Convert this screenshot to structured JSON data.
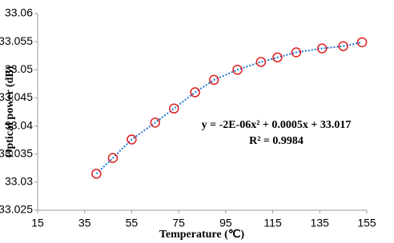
{
  "chart_data": {
    "type": "scatter",
    "x_label": "Temperature (℃)",
    "y_label": "Optical power (dB)",
    "annotations": [
      "y = -2E-06x² + 0.0005x + 33.017",
      "R² = 0.9984"
    ],
    "series": [
      {
        "color": "#e02020",
        "line_color": "#1f77d4",
        "x": [
          40,
          47,
          55,
          65,
          73,
          82,
          90,
          100,
          110,
          117,
          125,
          136,
          145,
          153
        ],
        "values": [
          33.0315,
          33.0343,
          33.0376,
          33.0406,
          33.0431,
          33.046,
          33.0482,
          33.05,
          33.0514,
          33.0522,
          33.0531,
          33.0538,
          33.0542,
          33.0549
        ]
      }
    ],
    "xlim": [
      15,
      155
    ],
    "xticks": [
      15,
      35,
      55,
      75,
      95,
      115,
      135,
      155
    ],
    "ylim": [
      33.025,
      33.06
    ],
    "yticks": [
      33.025,
      33.03,
      33.035,
      33.04,
      33.045,
      33.05,
      33.055,
      33.06
    ]
  }
}
